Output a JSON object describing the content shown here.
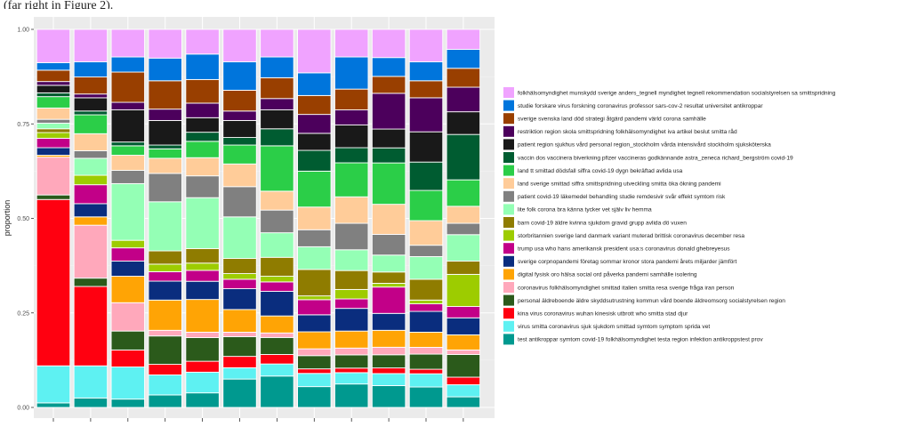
{
  "caption_fragment": "(far right in Figure 2).",
  "chart_data": {
    "type": "bar",
    "stacked": true,
    "ylabel": "proportion",
    "xlabel": "",
    "ylim": [
      0,
      1
    ],
    "yticks": [
      "0.00",
      "0.25",
      "0.50",
      "0.75",
      "1.00"
    ],
    "ytick_values": [
      0,
      0.25,
      0.5,
      0.75,
      1
    ],
    "grid": true,
    "legend_position": "right",
    "n_bars": 12,
    "categories": [
      "",
      "",
      "",
      "",
      "",
      "",
      "",
      "",
      "",
      "",
      "",
      ""
    ],
    "series": [
      {
        "name": "test antikroppar symtom covid-19 folkhälsomyndighet testa region infektion antikroppstest prov",
        "color": "#00998f",
        "values": [
          0.012,
          0.025,
          0.022,
          0.033,
          0.04,
          0.075,
          0.083,
          0.055,
          0.062,
          0.058,
          0.054,
          0.028
        ]
      },
      {
        "name": "virus smitta coronavirus sjuk sjukdom smittad symtom symptom sprida vet",
        "color": "#5ef1f2",
        "values": [
          0.098,
          0.085,
          0.085,
          0.053,
          0.057,
          0.03,
          0.032,
          0.035,
          0.03,
          0.032,
          0.035,
          0.032
        ]
      },
      {
        "name": "kina virus coronavirus wuhan kinesisk utbrott who smitta stad djur",
        "color": "#ff0010",
        "values": [
          0.44,
          0.21,
          0.045,
          0.028,
          0.03,
          0.03,
          0.025,
          0.012,
          0.012,
          0.015,
          0.012,
          0.02
        ]
      },
      {
        "name": "personal äldreboende äldre skyddsutrustning kommun vård boende äldreomsorg socialstyrelsen region",
        "color": "#2b5a1b",
        "values": [
          0.012,
          0.022,
          0.05,
          0.075,
          0.065,
          0.052,
          0.045,
          0.035,
          0.035,
          0.035,
          0.04,
          0.06
        ]
      },
      {
        "name": "coronavirus folkhälsomyndighet smittad italien smitta resa sverige fråga iran person",
        "color": "#ffa8bb",
        "values": [
          0.1,
          0.14,
          0.075,
          0.015,
          0.015,
          0.012,
          0.012,
          0.018,
          0.018,
          0.02,
          0.018,
          0.012
        ]
      },
      {
        "name": "digital fysisk oro hälsa social ord påverka pandemi samhälle isolering",
        "color": "#ffa405",
        "values": [
          0.005,
          0.022,
          0.07,
          0.08,
          0.09,
          0.06,
          0.045,
          0.045,
          0.045,
          0.045,
          0.04,
          0.04
        ]
      },
      {
        "name": "sverige corpnopandemi företag sommar kronor stora pandemi årets miljarder jämfört",
        "color": "#0a2d7e",
        "values": [
          0.02,
          0.035,
          0.04,
          0.05,
          0.05,
          0.055,
          0.065,
          0.045,
          0.06,
          0.045,
          0.055,
          0.045
        ]
      },
      {
        "name": "trump usa who hans amerikansk president usa:s coronavirus donald ghebreyesus",
        "color": "#c20088",
        "values": [
          0.025,
          0.05,
          0.035,
          0.025,
          0.03,
          0.025,
          0.025,
          0.04,
          0.025,
          0.07,
          0.02,
          0.03
        ]
      },
      {
        "name": "storbritannien sverige land danmark variant muterad brittisk coronavirus december resa",
        "color": "#9dcc00",
        "values": [
          0.015,
          0.025,
          0.02,
          0.02,
          0.02,
          0.015,
          0.015,
          0.01,
          0.025,
          0.01,
          0.01,
          0.085
        ]
      },
      {
        "name": "barn covid-19 äldre kvinna sjukdom gravid grupp avlida dö vuxen",
        "color": "#8f7c00",
        "values": [
          0.01,
          0.0,
          0.0,
          0.035,
          0.04,
          0.04,
          0.05,
          0.07,
          0.05,
          0.03,
          0.055,
          0.035
        ]
      },
      {
        "name": "lite folk corona bra känna tycker vet själv liv hemma",
        "color": "#94ffb5",
        "values": [
          0.015,
          0.045,
          0.15,
          0.13,
          0.14,
          0.11,
          0.065,
          0.06,
          0.055,
          0.045,
          0.06,
          0.07
        ]
      },
      {
        "name": "patient covid-19 läkemedel behandling studie remdesivir svår effekt symtom risk",
        "color": "#808080",
        "values": [
          0.01,
          0.02,
          0.035,
          0.075,
          0.06,
          0.08,
          0.06,
          0.045,
          0.07,
          0.055,
          0.03,
          0.03
        ]
      },
      {
        "name": "land sverige smittad siffra smittspridning utveckling smitta öka ökning pandemi",
        "color": "#ffcc99",
        "values": [
          0.03,
          0.045,
          0.04,
          0.04,
          0.05,
          0.06,
          0.05,
          0.06,
          0.07,
          0.08,
          0.065,
          0.045
        ]
      },
      {
        "name": "land tt smittad dödsfall siffra covid-19 dygn bekräftad avlida usa",
        "color": "#2bce48",
        "values": [
          0.03,
          0.05,
          0.025,
          0.025,
          0.045,
          0.05,
          0.12,
          0.095,
          0.09,
          0.11,
          0.08,
          0.07
        ]
      },
      {
        "name": "vaccin dos vaccinera biverkning pfizer vaccineras godkännande astra_zeneca richard_bergström covid-19",
        "color": "#005c31",
        "values": [
          0.01,
          0.01,
          0.01,
          0.01,
          0.025,
          0.02,
          0.045,
          0.055,
          0.04,
          0.04,
          0.075,
          0.12
        ]
      },
      {
        "name": "patient region sjukhus vård personal region_stockholm vårda intensivård stockholm sjuksköterska",
        "color": "#191919",
        "values": [
          0.02,
          0.035,
          0.085,
          0.065,
          0.04,
          0.045,
          0.05,
          0.045,
          0.06,
          0.05,
          0.08,
          0.06
        ]
      },
      {
        "name": "restriktion region skola smittspridning folkhälsomyndighet iva artikel beslut smitta råd",
        "color": "#4c005c",
        "values": [
          0.01,
          0.01,
          0.02,
          0.03,
          0.04,
          0.025,
          0.03,
          0.05,
          0.04,
          0.095,
          0.09,
          0.065
        ]
      },
      {
        "name": "sverige svenska land död strategi åtgärd pandemi värld corona samhälle",
        "color": "#993f00",
        "values": [
          0.03,
          0.045,
          0.08,
          0.075,
          0.065,
          0.055,
          0.055,
          0.05,
          0.055,
          0.045,
          0.045,
          0.05
        ]
      },
      {
        "name": "studie forskare virus forskning coronavirus professor sars-cov-2 resultat universitet antikroppar",
        "color": "#0075dc",
        "values": [
          0.02,
          0.04,
          0.04,
          0.06,
          0.07,
          0.075,
          0.055,
          0.06,
          0.085,
          0.05,
          0.05,
          0.05
        ]
      },
      {
        "name": "folkhälsomyndighet munskydd sverige anders_tegnell myndighet tegnell rekommendation socialstyrelsen sa smittspridning",
        "color": "#f0a3ff",
        "values": [
          0.088,
          0.086,
          0.073,
          0.076,
          0.068,
          0.086,
          0.073,
          0.115,
          0.073,
          0.075,
          0.086,
          0.053
        ]
      }
    ]
  }
}
